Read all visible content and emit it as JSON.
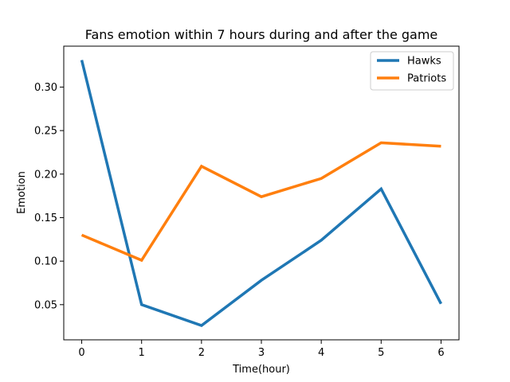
{
  "chart_data": {
    "type": "line",
    "title": "Fans emotion within 7 hours during and after the game",
    "xlabel": "Time(hour)",
    "ylabel": "Emotion",
    "x": [
      0,
      1,
      2,
      3,
      4,
      5,
      6
    ],
    "x_ticks": [
      "0",
      "1",
      "2",
      "3",
      "4",
      "5",
      "6"
    ],
    "y_ticks": [
      "0.05",
      "0.10",
      "0.15",
      "0.20",
      "0.25",
      "0.30"
    ],
    "y_tick_values": [
      0.05,
      0.1,
      0.15,
      0.2,
      0.25,
      0.3
    ],
    "xlim": [
      -0.3,
      6.3
    ],
    "ylim": [
      0.0096,
      0.347
    ],
    "grid": false,
    "legend_position": "upper right",
    "series": [
      {
        "name": "Hawks",
        "color": "#1f77b4",
        "values": [
          0.331,
          0.05,
          0.026,
          0.078,
          0.124,
          0.183,
          0.051
        ]
      },
      {
        "name": "Patriots",
        "color": "#ff7f0e",
        "values": [
          0.13,
          0.101,
          0.209,
          0.174,
          0.195,
          0.236,
          0.232
        ]
      }
    ]
  }
}
